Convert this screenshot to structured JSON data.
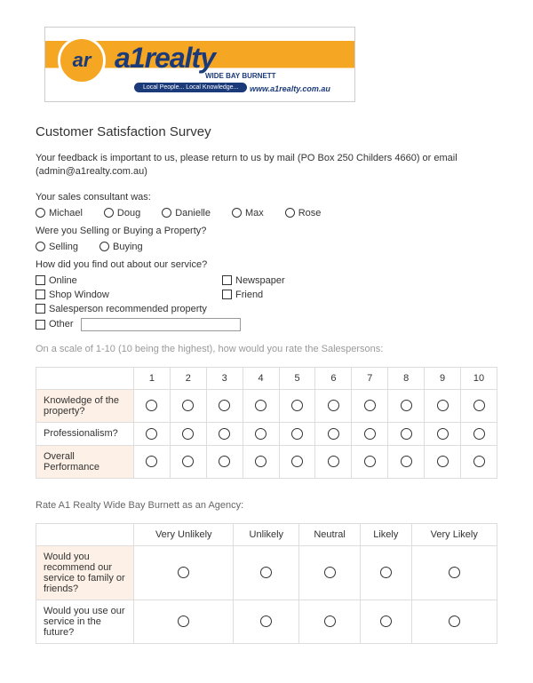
{
  "logo": {
    "circle_text": "ar",
    "main": "a1realty",
    "sub": "WIDE BAY BURNETT",
    "pill": "Local People... Local Knowledge...",
    "url": "www.a1realty.com.au"
  },
  "title": "Customer Satisfaction Survey",
  "intro": "Your feedback is important to us, please return to us by mail (PO Box 250 Childers 4660) or email (admin@a1realty.com.au)",
  "q_consultant": "Your sales consultant was:",
  "consultants": [
    "Michael",
    "Doug",
    "Danielle",
    "Max",
    "Rose"
  ],
  "q_action": "Were you Selling or Buying a Property?",
  "actions": [
    "Selling",
    "Buying"
  ],
  "q_source": "How did you find out about our service?",
  "sources_col1": [
    "Online",
    "Shop Window",
    "Salesperson recommended property"
  ],
  "sources_col2": [
    "Newspaper",
    "Friend",
    ""
  ],
  "other_label": "Other",
  "scale_intro": "On a scale of 1-10 (10 being the highest), how would you rate the Salespersons:",
  "scale_headers": [
    "1",
    "2",
    "3",
    "4",
    "5",
    "6",
    "7",
    "8",
    "9",
    "10"
  ],
  "scale_rows": [
    "Knowledge of the property?",
    "Professionalism?",
    "Overall Performance"
  ],
  "agency_intro": "Rate A1 Realty Wide Bay Burnett as an Agency:",
  "agency_headers": [
    "Very Unlikely",
    "Unlikely",
    "Neutral",
    "Likely",
    "Very Likely"
  ],
  "agency_rows": [
    "Would you recommend our service to family or friends?",
    "Would you use our service in the future?"
  ]
}
